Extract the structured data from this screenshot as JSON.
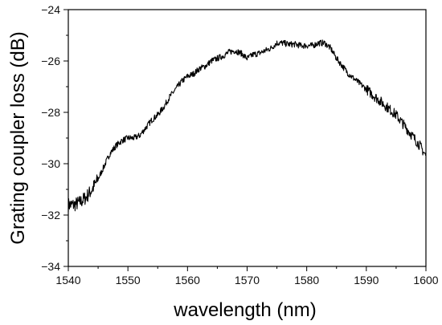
{
  "chart_data": {
    "type": "line",
    "title": "",
    "xlabel": "wavelength (nm)",
    "ylabel": "Grating coupler loss (dB)",
    "xlim": [
      1540,
      1600
    ],
    "ylim": [
      -34,
      -24
    ],
    "x_ticks": [
      1540,
      1550,
      1560,
      1570,
      1580,
      1590,
      1600
    ],
    "y_ticks": [
      -34,
      -32,
      -30,
      -28,
      -26,
      -24
    ],
    "x_tick_labels": [
      "1540",
      "1550",
      "1560",
      "1570",
      "1580",
      "1590",
      "1600"
    ],
    "y_tick_labels": [
      "−34",
      "−32",
      "−30",
      "−28",
      "−26",
      "−24"
    ],
    "grid": false,
    "line_color": "#000000",
    "series": [
      {
        "x": [
          1540,
          1541,
          1542,
          1543,
          1544,
          1545,
          1546,
          1547,
          1548,
          1549,
          1550,
          1551,
          1552,
          1553,
          1554,
          1555,
          1556,
          1557,
          1558,
          1559,
          1560,
          1561,
          1562,
          1563,
          1564,
          1565,
          1566,
          1567,
          1568,
          1569,
          1570,
          1571,
          1572,
          1573,
          1574,
          1575,
          1576,
          1577,
          1578,
          1579,
          1580,
          1581,
          1582,
          1583,
          1584,
          1585,
          1586,
          1587,
          1588,
          1589,
          1590,
          1591,
          1592,
          1593,
          1594,
          1595,
          1596,
          1597,
          1598,
          1599,
          1600
        ],
        "values": [
          -31.6,
          -31.6,
          -31.5,
          -31.3,
          -31.0,
          -30.6,
          -30.1,
          -29.6,
          -29.3,
          -29.1,
          -29.0,
          -29.0,
          -28.9,
          -28.6,
          -28.3,
          -28.1,
          -27.8,
          -27.4,
          -27.1,
          -26.8,
          -26.6,
          -26.5,
          -26.3,
          -26.2,
          -26.0,
          -25.9,
          -25.8,
          -25.65,
          -25.6,
          -25.7,
          -25.9,
          -25.75,
          -25.7,
          -25.6,
          -25.5,
          -25.3,
          -25.3,
          -25.35,
          -25.35,
          -25.4,
          -25.4,
          -25.4,
          -25.3,
          -25.3,
          -25.5,
          -25.9,
          -26.2,
          -26.5,
          -26.7,
          -26.9,
          -27.1,
          -27.3,
          -27.5,
          -27.7,
          -27.9,
          -28.1,
          -28.4,
          -28.7,
          -29.0,
          -29.3,
          -29.7
        ]
      }
    ]
  }
}
